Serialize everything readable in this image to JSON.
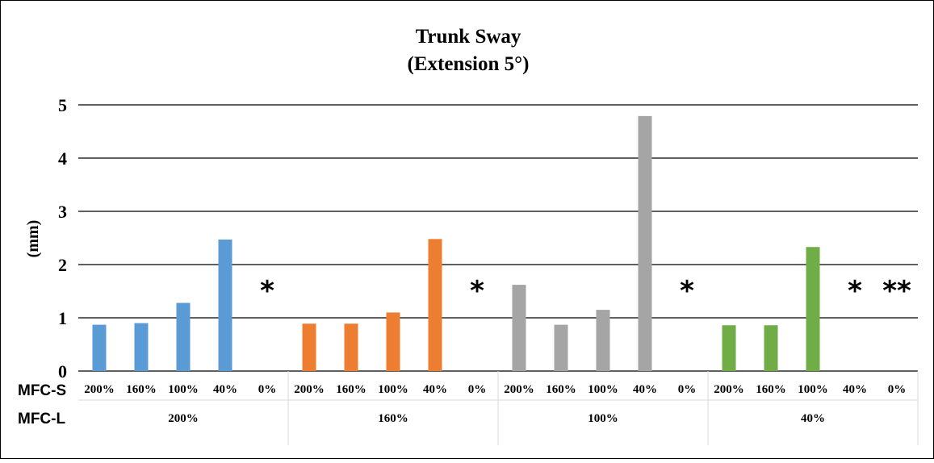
{
  "chart_data": {
    "type": "bar",
    "title": "Trunk Sway",
    "subtitle": "(Extension 5°)",
    "ylabel": "(mm)",
    "ylim": [
      0,
      5
    ],
    "yticks": [
      "0",
      "1",
      "2",
      "3",
      "4",
      "5"
    ],
    "grid": true,
    "row_labels": {
      "inner": "MFC-S",
      "outer": "MFC-L"
    },
    "groups": [
      {
        "label": "200%",
        "color": "#5b9bd5",
        "categories": [
          "200%",
          "160%",
          "100%",
          "40%",
          "0%"
        ],
        "values": [
          0.87,
          0.9,
          1.28,
          2.47,
          null
        ],
        "annotations": [
          "",
          "",
          "",
          "",
          "*"
        ]
      },
      {
        "label": "160%",
        "color": "#ed7d31",
        "categories": [
          "200%",
          "160%",
          "100%",
          "40%",
          "0%"
        ],
        "values": [
          0.89,
          0.89,
          1.1,
          2.48,
          null
        ],
        "annotations": [
          "",
          "",
          "",
          "",
          "*"
        ]
      },
      {
        "label": "100%",
        "color": "#a5a5a5",
        "categories": [
          "200%",
          "160%",
          "100%",
          "40%",
          "0%"
        ],
        "values": [
          1.62,
          0.87,
          1.15,
          4.79,
          null
        ],
        "annotations": [
          "",
          "",
          "",
          "",
          "*"
        ]
      },
      {
        "label": "40%",
        "color": "#70ad47",
        "categories": [
          "200%",
          "160%",
          "100%",
          "40%",
          "0%"
        ],
        "values": [
          0.86,
          0.86,
          2.33,
          null,
          null
        ],
        "annotations": [
          "",
          "",
          "",
          "*",
          "**"
        ]
      }
    ]
  }
}
